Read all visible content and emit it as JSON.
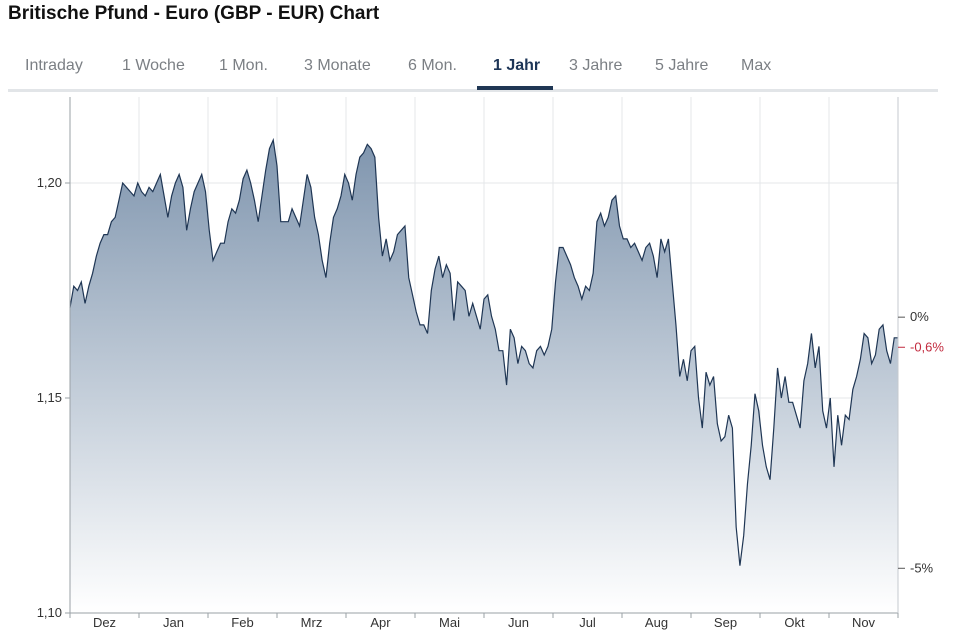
{
  "title": "Britische Pfund - Euro (GBP - EUR) Chart",
  "tabs": [
    {
      "label": "Intraday",
      "active": false
    },
    {
      "label": "1 Woche",
      "active": false
    },
    {
      "label": "1 Mon.",
      "active": false
    },
    {
      "label": "3 Monate",
      "active": false
    },
    {
      "label": "6 Mon.",
      "active": false
    },
    {
      "label": "1 Jahr",
      "active": true
    },
    {
      "label": "3 Jahre",
      "active": false
    },
    {
      "label": "5 Jahre",
      "active": false
    },
    {
      "label": "Max",
      "active": false
    }
  ],
  "colors": {
    "line": "#1f3654",
    "fill_top": "#7f95ae",
    "fill_bottom": "#ffffff",
    "negative": "#c22a3e",
    "active_tab": "#1f3654",
    "grid": "#e4e7ea"
  },
  "chart_data": {
    "type": "area",
    "x_labels": [
      "Dez",
      "Jan",
      "Feb",
      "Mrz",
      "Apr",
      "Mai",
      "Jun",
      "Jul",
      "Aug",
      "Sep",
      "Okt",
      "Nov"
    ],
    "y_ticks": [
      "1,10",
      "1,15",
      "1,20"
    ],
    "ylim": [
      1.1,
      1.22
    ],
    "right_ticks": [
      {
        "label": "0%",
        "value": 1.1688
      },
      {
        "label": "-0,6%",
        "value": 1.1618,
        "negative": true
      },
      {
        "label": "-5%",
        "value": 1.1104
      }
    ],
    "grid": true,
    "values": [
      1.171,
      1.176,
      1.175,
      1.177,
      1.172,
      1.176,
      1.179,
      1.183,
      1.186,
      1.188,
      1.188,
      1.191,
      1.192,
      1.196,
      1.2,
      1.199,
      1.198,
      1.197,
      1.2,
      1.198,
      1.197,
      1.199,
      1.198,
      1.2,
      1.202,
      1.197,
      1.192,
      1.197,
      1.2,
      1.202,
      1.199,
      1.189,
      1.194,
      1.198,
      1.2,
      1.202,
      1.198,
      1.189,
      1.182,
      1.184,
      1.186,
      1.186,
      1.191,
      1.194,
      1.193,
      1.196,
      1.201,
      1.203,
      1.2,
      1.196,
      1.191,
      1.197,
      1.203,
      1.208,
      1.21,
      1.204,
      1.191,
      1.191,
      1.191,
      1.194,
      1.192,
      1.19,
      1.196,
      1.202,
      1.199,
      1.192,
      1.188,
      1.182,
      1.178,
      1.186,
      1.192,
      1.194,
      1.197,
      1.202,
      1.2,
      1.196,
      1.202,
      1.206,
      1.207,
      1.209,
      1.208,
      1.206,
      1.192,
      1.183,
      1.187,
      1.182,
      1.184,
      1.188,
      1.189,
      1.19,
      1.178,
      1.174,
      1.17,
      1.167,
      1.167,
      1.165,
      1.175,
      1.18,
      1.183,
      1.178,
      1.181,
      1.179,
      1.168,
      1.177,
      1.176,
      1.175,
      1.169,
      1.172,
      1.169,
      1.166,
      1.173,
      1.174,
      1.169,
      1.166,
      1.161,
      1.161,
      1.153,
      1.166,
      1.164,
      1.158,
      1.162,
      1.161,
      1.158,
      1.157,
      1.161,
      1.162,
      1.16,
      1.162,
      1.166,
      1.177,
      1.185,
      1.185,
      1.183,
      1.181,
      1.178,
      1.176,
      1.173,
      1.176,
      1.175,
      1.179,
      1.191,
      1.193,
      1.19,
      1.192,
      1.196,
      1.197,
      1.19,
      1.187,
      1.187,
      1.185,
      1.186,
      1.184,
      1.182,
      1.185,
      1.186,
      1.183,
      1.178,
      1.187,
      1.184,
      1.187,
      1.177,
      1.167,
      1.155,
      1.159,
      1.154,
      1.161,
      1.162,
      1.15,
      1.143,
      1.156,
      1.153,
      1.155,
      1.144,
      1.14,
      1.141,
      1.146,
      1.143,
      1.12,
      1.111,
      1.118,
      1.13,
      1.139,
      1.151,
      1.147,
      1.139,
      1.134,
      1.131,
      1.143,
      1.157,
      1.15,
      1.155,
      1.149,
      1.149,
      1.146,
      1.143,
      1.154,
      1.158,
      1.165,
      1.157,
      1.162,
      1.147,
      1.143,
      1.15,
      1.134,
      1.146,
      1.139,
      1.146,
      1.145,
      1.152,
      1.155,
      1.159,
      1.165,
      1.164,
      1.158,
      1.16,
      1.166,
      1.167,
      1.161,
      1.158,
      1.164,
      1.164
    ]
  }
}
